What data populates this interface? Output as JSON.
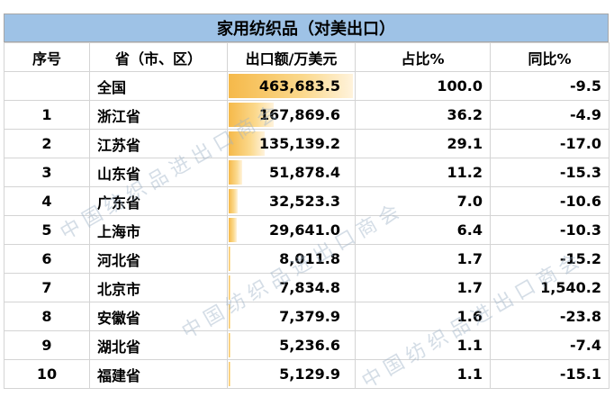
{
  "title": "家用纺织品（对美出口）",
  "headers": {
    "index": "序号",
    "province": "省（市、区）",
    "export": "出口额/万美元",
    "share": "占比%",
    "yoy": "同比%"
  },
  "rows": [
    {
      "index": "",
      "province": "全国",
      "export": "463,683.5",
      "export_value": 463683.5,
      "share": "100.0",
      "yoy": "-9.5"
    },
    {
      "index": "1",
      "province": "浙江省",
      "export": "167,869.6",
      "export_value": 167869.6,
      "share": "36.2",
      "yoy": "-4.9"
    },
    {
      "index": "2",
      "province": "江苏省",
      "export": "135,139.2",
      "export_value": 135139.2,
      "share": "29.1",
      "yoy": "-17.0"
    },
    {
      "index": "3",
      "province": "山东省",
      "export": "51,878.4",
      "export_value": 51878.4,
      "share": "11.2",
      "yoy": "-15.3"
    },
    {
      "index": "4",
      "province": "广东省",
      "export": "32,523.3",
      "export_value": 32523.3,
      "share": "7.0",
      "yoy": "-10.6"
    },
    {
      "index": "5",
      "province": "上海市",
      "export": "29,641.0",
      "export_value": 29641.0,
      "share": "6.4",
      "yoy": "-10.3"
    },
    {
      "index": "6",
      "province": "河北省",
      "export": "8,011.8",
      "export_value": 8011.8,
      "share": "1.7",
      "yoy": "-15.2"
    },
    {
      "index": "7",
      "province": "北京市",
      "export": "7,834.8",
      "export_value": 7834.8,
      "share": "1.7",
      "yoy": "1,540.2"
    },
    {
      "index": "8",
      "province": "安徽省",
      "export": "7,379.9",
      "export_value": 7379.9,
      "share": "1.6",
      "yoy": "-23.8"
    },
    {
      "index": "9",
      "province": "湖北省",
      "export": "5,236.6",
      "export_value": 5236.6,
      "share": "1.1",
      "yoy": "-7.4"
    },
    {
      "index": "10",
      "province": "福建省",
      "export": "5,129.9",
      "export_value": 5129.9,
      "share": "1.1",
      "yoy": "-15.1"
    }
  ],
  "watermark": "中国纺织品进出口商会"
}
